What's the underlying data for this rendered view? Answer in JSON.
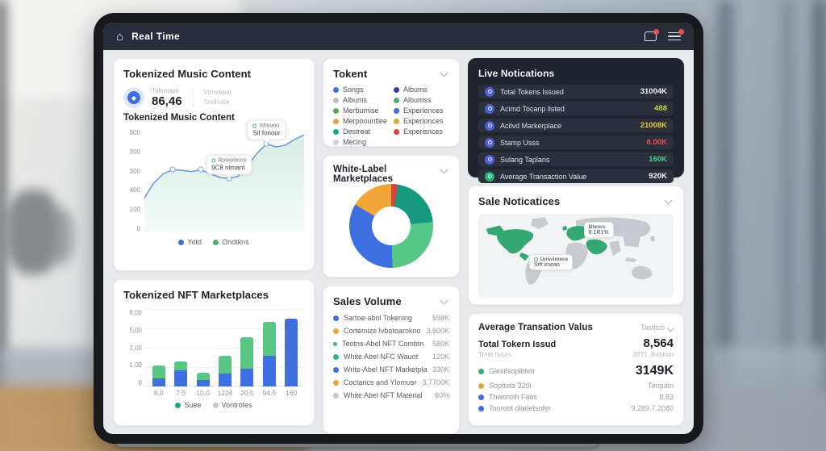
{
  "topbar": {
    "title": "Real Time"
  },
  "music": {
    "title": "Tokenized Music Content",
    "stat_label": "Tolnosion",
    "stat_value": "86,46",
    "stat_alt1": "Vtrnetiont",
    "stat_alt2": "Snohutte",
    "chart_title": "Tokenized Music Content",
    "y_ticks": [
      "800",
      "700",
      "300",
      "400",
      "100",
      "0"
    ],
    "legend": [
      {
        "label": "Yotd",
        "color": "#3d6fe0"
      },
      {
        "label": "Ondtkns",
        "color": "#4cae6e"
      }
    ],
    "tooltips": [
      {
        "line1": "Rowooxoro",
        "line2": "9C8 ntmant",
        "dot": "#4cae6e"
      },
      {
        "line1": "Ishouoo",
        "line2": "Sif fonour",
        "dot": "#4cae6e"
      }
    ]
  },
  "tokent": {
    "title": "Tokent",
    "left": [
      {
        "label": "Songs",
        "color": "#3d6fe0"
      },
      {
        "label": "Albums",
        "color": "#b9bec7"
      },
      {
        "label": "Merbumise",
        "color": "#5ba659"
      },
      {
        "label": "Merpoountlee",
        "color": "#e8a33d"
      },
      {
        "label": "Destreat",
        "color": "#18a887"
      },
      {
        "label": "Mecing",
        "color": "#cfd3d8"
      }
    ],
    "right": [
      {
        "label": "Albums",
        "color": "#2e3f9e"
      },
      {
        "label": "Albumss",
        "color": "#4cae6e"
      },
      {
        "label": "Experiences",
        "color": "#3d6fe0"
      },
      {
        "label": "Experionces",
        "color": "#e8a33d"
      },
      {
        "label": "Experisnces",
        "color": "#d64541"
      }
    ]
  },
  "live": {
    "title": "Live Notications",
    "rows": [
      {
        "label": "Total Tokens Issued",
        "value": "31004K",
        "color": "#f2f4f8",
        "icon": "#4b5fd6"
      },
      {
        "label": "Acimd Tocanp listed",
        "value": "488",
        "color": "#c6d93c",
        "icon": "#4b5fd6"
      },
      {
        "label": "Acilvd Markerplace",
        "value": "21008K",
        "color": "#e3c93f",
        "icon": "#4b5fd6"
      },
      {
        "label": "Stamp Usss",
        "value": "8.00K",
        "color": "#e0524d",
        "icon": "#4b5fd6"
      },
      {
        "label": "Sulang Taplans",
        "value": "160K",
        "color": "#3ddc84",
        "icon": "#4b5fd6"
      },
      {
        "label": "Average Transaction Value",
        "value": "920K",
        "color": "#f2f4f8",
        "icon": "#22b573"
      }
    ]
  },
  "donut": {
    "title": "White-Label Marketplaces"
  },
  "map": {
    "title": "Sale Noticatices",
    "tooltips": [
      {
        "line1": "Btenrs",
        "line2": "8.1R1%"
      },
      {
        "line1": "Unsvimece",
        "line2": "Srft imean",
        "dot": "#2bb673"
      }
    ]
  },
  "nft": {
    "title": "Tokenized NFT Marketplaces",
    "y_ticks": [
      "8,00",
      "5,00",
      "2,00",
      "1,00",
      "0"
    ],
    "legend": [
      {
        "label": "Suee",
        "color": "#18a887"
      },
      {
        "label": "Vontrotes",
        "color": "#c3c8cd"
      }
    ]
  },
  "sales": {
    "title": "Sales Volume",
    "rows": [
      {
        "label": "Sartoe-abol Tokening",
        "value": "598K",
        "dot": "#3d6fe0"
      },
      {
        "label": "Cortemize Ivbotoaroknols",
        "value": "3,900K",
        "dot": "#e8a33d"
      },
      {
        "label": "Teotns-Abel NFT Combtn",
        "value": "580K",
        "dot": "#2bb673",
        "ring": true
      },
      {
        "label": "White Abel NFC Wauot",
        "value": "120K",
        "dot": "#2bb673"
      },
      {
        "label": "Write-Abel NFT Marketplace",
        "value": "330K",
        "dot": "#3d6fe0"
      },
      {
        "label": "Coctarics and Ylomusrg",
        "value": "3,7700K",
        "dot": "#e8a33d"
      },
      {
        "label": "White Abel NFT Material",
        "value": "80%",
        "dot": "#c3c8cd"
      }
    ]
  },
  "avg": {
    "title": "Average Transation Valus",
    "dropdown": "Tastlicb",
    "total_label": "Total Tokern Issud",
    "total_value": "8,564",
    "sub_label": "Trnte hours",
    "sub_value": "20T1 Jkvbbon",
    "rows": [
      {
        "label": "Glexifsoplbtetr",
        "value": "3149K",
        "dot": "#2bb673"
      },
      {
        "label": "Sopttxta 320l",
        "value": "Terquitn",
        "dot": "#e8a33d"
      },
      {
        "label": "Thworoth Fans",
        "value": "8,83",
        "dot": "#3d6fe0"
      },
      {
        "label": "Tooreot diarletsofer",
        "value": "9,289.7,2080",
        "dot": "#3d6fe0"
      }
    ]
  },
  "chart_data": [
    {
      "type": "line",
      "title": "Tokenized Music Content",
      "ylim": [
        0,
        900
      ],
      "y_tick_labels": [
        "800",
        "700",
        "300",
        "400",
        "100",
        "0"
      ],
      "series": [
        {
          "name": "Yotd",
          "values": [
            300,
            430,
            510,
            545,
            540,
            530,
            545,
            510,
            480,
            470,
            490,
            580,
            690,
            770,
            745,
            760,
            810,
            850
          ]
        }
      ],
      "marker_indices": [
        3,
        6,
        9,
        13
      ],
      "annotation_marker_indices": [
        9,
        13
      ],
      "legend": [
        "Yotd",
        "Ondtkns"
      ],
      "line_color": "#6b9bd8",
      "fill_top": "#d7ece4",
      "fill_bottom": "#f2faf7"
    },
    {
      "type": "pie",
      "title": "White-Label Marketplaces",
      "donut_hole": 0.46,
      "slices": [
        {
          "label": "sliver",
          "value": 2.5,
          "color": "#d8453c"
        },
        {
          "label": "teal",
          "value": 21,
          "color": "#17997f"
        },
        {
          "label": "green",
          "value": 26,
          "color": "#57c785"
        },
        {
          "label": "blue",
          "value": 34,
          "color": "#3d6fe0"
        },
        {
          "label": "orange",
          "value": 16.5,
          "color": "#f2a638"
        }
      ]
    },
    {
      "type": "bar",
      "stacked": true,
      "title": "Tokenized NFT Marketplaces",
      "categories": [
        "8.0",
        "7.5",
        "10.0",
        "1224",
        "20.5",
        "94.5",
        "160"
      ],
      "ylim": [
        0,
        3.3
      ],
      "y_tick_labels": [
        "8,00",
        "5,00",
        "2,00",
        "1,00",
        "0"
      ],
      "series": [
        {
          "name": "Suee",
          "color": "#3d6fe0",
          "values": [
            0.35,
            0.7,
            0.28,
            0.55,
            0.75,
            1.3,
            2.9
          ]
        },
        {
          "name": "Vontrotes",
          "color": "#57c785",
          "values": [
            0.55,
            0.35,
            0.3,
            0.75,
            1.35,
            1.45,
            0
          ]
        }
      ]
    }
  ]
}
